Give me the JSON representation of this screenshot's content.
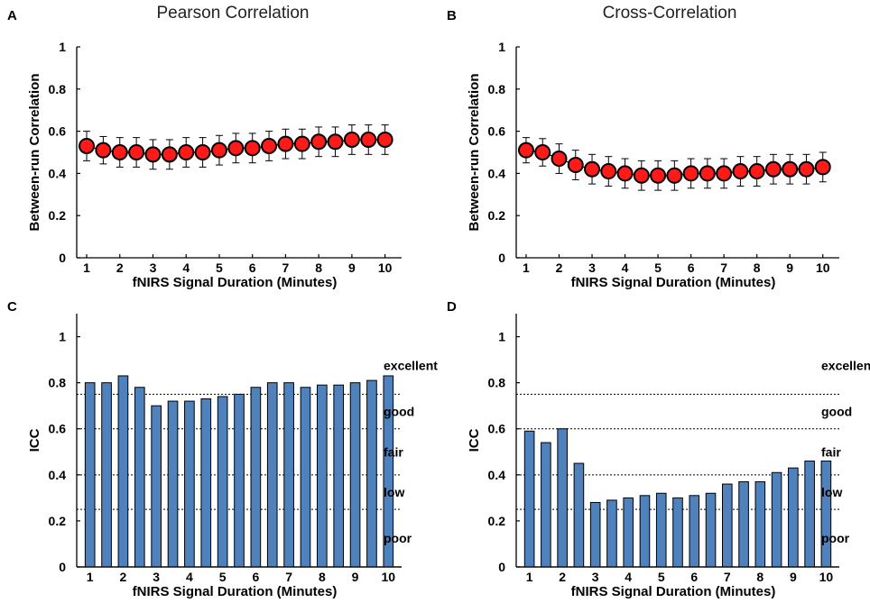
{
  "chart_data": [
    {
      "id": "A",
      "panel_label": "A",
      "type": "scatter",
      "title": "Pearson Correlation",
      "xlabel": "fNIRS Signal Duration (Minutes)",
      "ylabel": "Between-run Correlation",
      "xlim": [
        0.7,
        10.5
      ],
      "ylim": [
        0,
        1
      ],
      "xticks": [
        "1",
        "2",
        "3",
        "4",
        "5",
        "6",
        "7",
        "8",
        "9",
        "10"
      ],
      "yticks": [
        "0",
        "0.2",
        "0.4",
        "0.6",
        "0.8",
        "1"
      ],
      "x": [
        1,
        1.5,
        2,
        2.5,
        3,
        3.5,
        4,
        4.5,
        5,
        5.5,
        6,
        6.5,
        7,
        7.5,
        8,
        8.5,
        9,
        9.5,
        10
      ],
      "values": [
        0.53,
        0.51,
        0.5,
        0.5,
        0.49,
        0.49,
        0.5,
        0.5,
        0.51,
        0.52,
        0.52,
        0.53,
        0.54,
        0.54,
        0.55,
        0.55,
        0.56,
        0.56,
        0.56
      ],
      "error": [
        0.07,
        0.065,
        0.07,
        0.07,
        0.07,
        0.07,
        0.07,
        0.07,
        0.07,
        0.07,
        0.07,
        0.07,
        0.07,
        0.07,
        0.07,
        0.07,
        0.07,
        0.07,
        0.07
      ],
      "marker_color": "#ff1a1a"
    },
    {
      "id": "B",
      "panel_label": "B",
      "type": "scatter",
      "title": "Cross-Correlation",
      "xlabel": "fNIRS Signal Duration (Minutes)",
      "ylabel": "Between-run Correlation",
      "xlim": [
        0.7,
        10.5
      ],
      "ylim": [
        0,
        1
      ],
      "xticks": [
        "1",
        "2",
        "3",
        "4",
        "5",
        "6",
        "7",
        "8",
        "9",
        "10"
      ],
      "yticks": [
        "0",
        "0.2",
        "0.4",
        "0.6",
        "0.8",
        "1"
      ],
      "x": [
        1,
        1.5,
        2,
        2.5,
        3,
        3.5,
        4,
        4.5,
        5,
        5.5,
        6,
        6.5,
        7,
        7.5,
        8,
        8.5,
        9,
        9.5,
        10
      ],
      "values": [
        0.51,
        0.5,
        0.47,
        0.44,
        0.42,
        0.41,
        0.4,
        0.39,
        0.39,
        0.39,
        0.4,
        0.4,
        0.4,
        0.41,
        0.41,
        0.42,
        0.42,
        0.42,
        0.43
      ],
      "error": [
        0.06,
        0.065,
        0.07,
        0.07,
        0.07,
        0.07,
        0.07,
        0.07,
        0.07,
        0.07,
        0.07,
        0.07,
        0.07,
        0.07,
        0.07,
        0.07,
        0.07,
        0.07,
        0.07
      ],
      "marker_color": "#ff1a1a"
    },
    {
      "id": "C",
      "panel_label": "C",
      "type": "bar",
      "xlabel": "fNIRS Signal Duration (Minutes)",
      "ylabel": "ICC",
      "xlim": [
        0.6,
        10.4
      ],
      "ylim": [
        0,
        1.1
      ],
      "xticks": [
        "1",
        "2",
        "3",
        "4",
        "5",
        "6",
        "7",
        "8",
        "9",
        "10"
      ],
      "yticks": [
        "0",
        "0.2",
        "0.4",
        "0.6",
        "0.8",
        "1"
      ],
      "x": [
        1,
        1.5,
        2,
        2.5,
        3,
        3.5,
        4,
        4.5,
        5,
        5.5,
        6,
        6.5,
        7,
        7.5,
        8,
        8.5,
        9,
        9.5,
        10
      ],
      "values": [
        0.8,
        0.8,
        0.83,
        0.78,
        0.7,
        0.72,
        0.72,
        0.73,
        0.74,
        0.75,
        0.78,
        0.8,
        0.8,
        0.78,
        0.79,
        0.79,
        0.8,
        0.81,
        0.83
      ],
      "bar_color": "#4f81bd",
      "thresholds": [
        0.25,
        0.4,
        0.6,
        0.75
      ],
      "bands": [
        {
          "label": "excellent",
          "y": 0.875
        },
        {
          "label": "good",
          "y": 0.675
        },
        {
          "label": "fair",
          "y": 0.5
        },
        {
          "label": "low",
          "y": 0.325
        },
        {
          "label": "poor",
          "y": 0.125
        }
      ]
    },
    {
      "id": "D",
      "panel_label": "D",
      "type": "bar",
      "xlabel": "fNIRS Signal Duration (Minutes)",
      "ylabel": "ICC",
      "xlim": [
        0.6,
        10.4
      ],
      "ylim": [
        0,
        1.1
      ],
      "xticks": [
        "1",
        "2",
        "3",
        "4",
        "5",
        "6",
        "7",
        "8",
        "9",
        "10"
      ],
      "yticks": [
        "0",
        "0.2",
        "0.4",
        "0.6",
        "0.8",
        "1"
      ],
      "x": [
        1,
        1.5,
        2,
        2.5,
        3,
        3.5,
        4,
        4.5,
        5,
        5.5,
        6,
        6.5,
        7,
        7.5,
        8,
        8.5,
        9,
        9.5,
        10
      ],
      "values": [
        0.59,
        0.54,
        0.6,
        0.45,
        0.28,
        0.29,
        0.3,
        0.31,
        0.32,
        0.3,
        0.31,
        0.32,
        0.36,
        0.37,
        0.37,
        0.41,
        0.43,
        0.46,
        0.46
      ],
      "bar_color": "#4f81bd",
      "thresholds": [
        0.25,
        0.4,
        0.6,
        0.75
      ],
      "bands": [
        {
          "label": "excellent",
          "y": 0.875
        },
        {
          "label": "good",
          "y": 0.675
        },
        {
          "label": "fair",
          "y": 0.5
        },
        {
          "label": "low",
          "y": 0.325
        },
        {
          "label": "poor",
          "y": 0.125
        }
      ]
    }
  ]
}
